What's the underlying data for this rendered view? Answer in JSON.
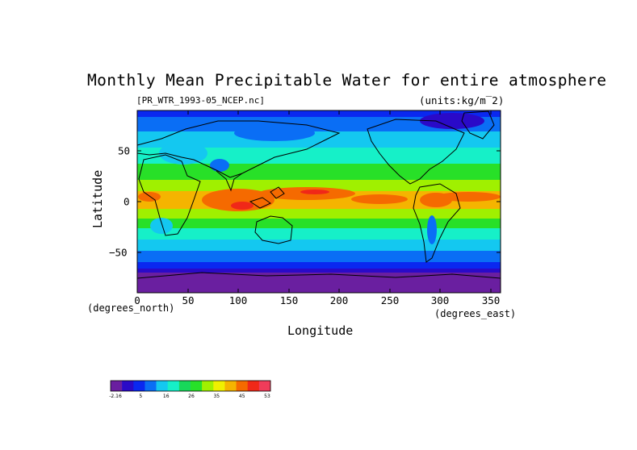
{
  "title": "Monthly Mean Precipitable Water for entire atmosphere",
  "file_label": "[PR_WTR_1993-05_NCEP.nc]",
  "units_label": "(units:kg/m‾2)",
  "axes": {
    "xlabel": "Longitude",
    "ylabel": "Latitude",
    "x_units": "(degrees_east)",
    "y_units": "(degrees_north)",
    "x_ticks": [
      "0",
      "50",
      "100",
      "150",
      "200",
      "250",
      "300",
      "350"
    ],
    "y_ticks": [
      "50",
      "0",
      "−50"
    ]
  },
  "colorbar": {
    "tick_labels": [
      "-2.16",
      "5",
      "16",
      "26",
      "35",
      "45",
      "53"
    ],
    "colors": [
      "#6a1fa0",
      "#2a0ac8",
      "#0a28f0",
      "#0a6ef5",
      "#14c8f0",
      "#16f0c8",
      "#18d85a",
      "#28e028",
      "#a0f000",
      "#f0f000",
      "#f5b400",
      "#f56a00",
      "#f02818",
      "#f03c5a"
    ]
  },
  "map_data": {
    "type": "filled-contour",
    "x_range": [
      0,
      360
    ],
    "y_range": [
      -90,
      90
    ],
    "variable": "Precipitable Water"
  }
}
